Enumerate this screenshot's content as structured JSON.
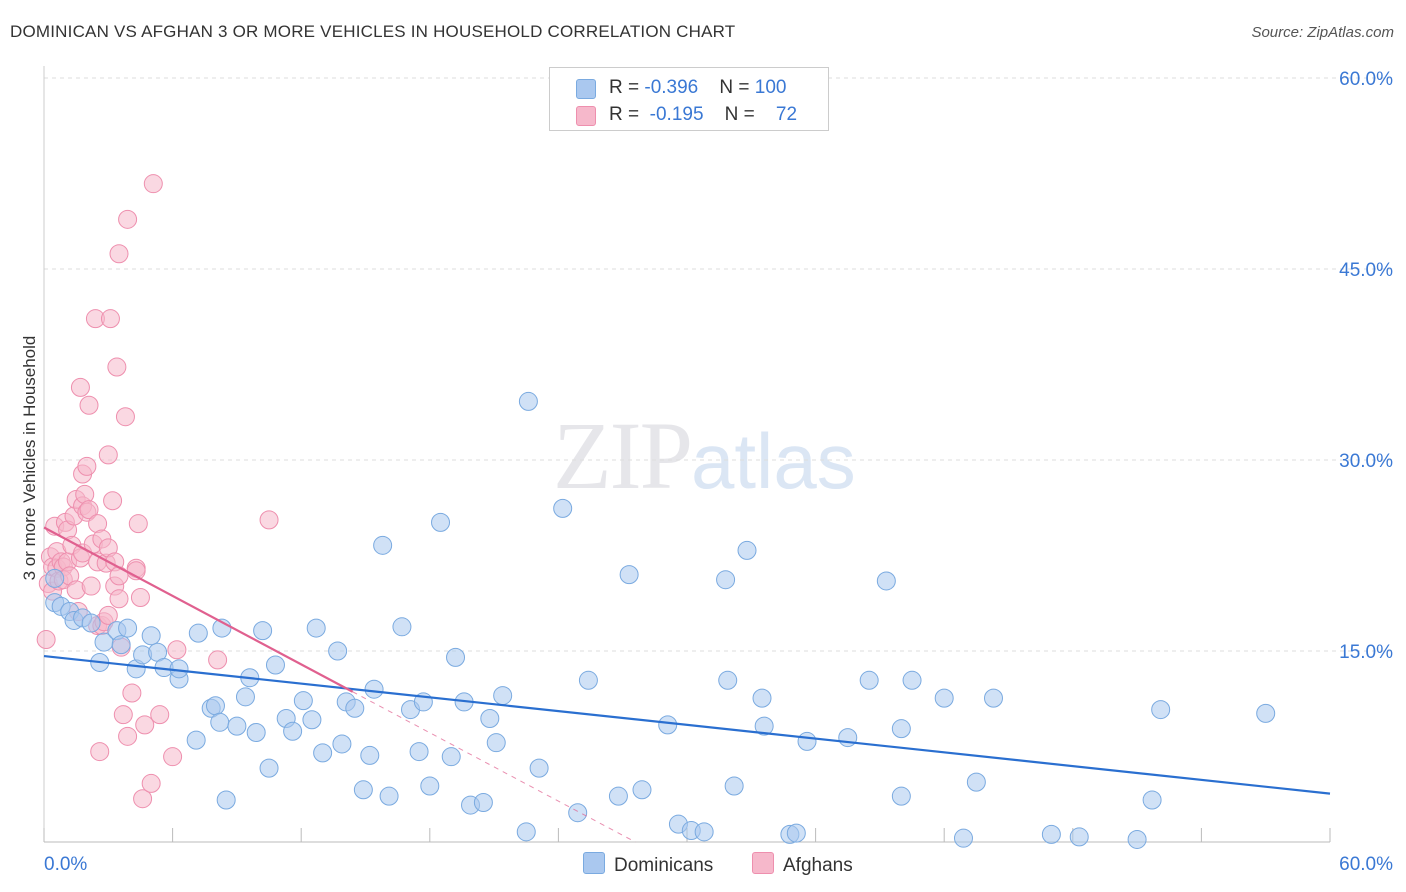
{
  "header": {
    "title": "DOMINICAN VS AFGHAN 3 OR MORE VEHICLES IN HOUSEHOLD CORRELATION CHART",
    "source": "Source: ZipAtlas.com"
  },
  "watermark": {
    "zip": "ZIP",
    "atlas": "atlas"
  },
  "legend_box": {
    "rows": [
      {
        "r_label": "R = ",
        "r_value": "-0.396",
        "n_label": "N = ",
        "n_value": "100",
        "color": "#aac8ef"
      },
      {
        "r_label": "R = ",
        "r_value": "-0.195",
        "n_label": "N = ",
        "n_value": "72",
        "color": "#f6b8cb"
      }
    ]
  },
  "bottom_legend": {
    "items": [
      {
        "label": "Dominicans",
        "color": "#aac8ef"
      },
      {
        "label": "Afghans",
        "color": "#f6b8cb"
      }
    ]
  },
  "colors": {
    "blue_fill": "#aac8ef",
    "blue_stroke": "#7aaae0",
    "blue_line": "#2a6fd0",
    "pink_fill": "#f6b8cb",
    "pink_stroke": "#ee8fae",
    "pink_line": "#e0608f",
    "grid": "#dddddd",
    "axis_text": "#3a78d4"
  },
  "chart_data": {
    "type": "scatter",
    "title": "DOMINICAN VS AFGHAN 3 OR MORE VEHICLES IN HOUSEHOLD CORRELATION CHART",
    "xlabel": "",
    "ylabel": "3 or more Vehicles in Household",
    "xlim": [
      0,
      60
    ],
    "ylim": [
      0,
      60
    ],
    "x_tick_labels": [
      "0.0%",
      "60.0%"
    ],
    "y_ticks": [
      15,
      30,
      45,
      60
    ],
    "y_tick_labels": [
      "15.0%",
      "30.0%",
      "45.0%",
      "60.0%"
    ],
    "grid": true,
    "legend_position": "top-center",
    "series": [
      {
        "name": "Dominicans",
        "r": -0.396,
        "n": 100,
        "trend": {
          "x0": 0,
          "y0": 14.6,
          "x1": 60,
          "y1": 3.8
        },
        "points": [
          [
            0.5,
            20.7
          ],
          [
            0.5,
            18.8
          ],
          [
            0.8,
            18.5
          ],
          [
            1.2,
            18.1
          ],
          [
            1.4,
            17.4
          ],
          [
            1.8,
            17.6
          ],
          [
            2.2,
            17.2
          ],
          [
            2.6,
            14.1
          ],
          [
            2.8,
            15.7
          ],
          [
            3.4,
            16.6
          ],
          [
            3.6,
            15.5
          ],
          [
            3.9,
            16.8
          ],
          [
            4.3,
            13.6
          ],
          [
            4.6,
            14.7
          ],
          [
            5.0,
            16.2
          ],
          [
            5.3,
            14.9
          ],
          [
            5.6,
            13.7
          ],
          [
            6.3,
            12.8
          ],
          [
            6.3,
            13.6
          ],
          [
            7.1,
            8.0
          ],
          [
            7.2,
            16.4
          ],
          [
            7.8,
            10.5
          ],
          [
            8.0,
            10.7
          ],
          [
            8.2,
            9.4
          ],
          [
            8.3,
            16.8
          ],
          [
            8.5,
            3.3
          ],
          [
            9.0,
            9.1
          ],
          [
            9.4,
            11.4
          ],
          [
            9.6,
            12.9
          ],
          [
            9.9,
            8.6
          ],
          [
            10.2,
            16.6
          ],
          [
            10.5,
            5.8
          ],
          [
            10.8,
            13.9
          ],
          [
            11.3,
            9.7
          ],
          [
            11.6,
            8.7
          ],
          [
            12.1,
            11.1
          ],
          [
            12.5,
            9.6
          ],
          [
            12.7,
            16.8
          ],
          [
            13.0,
            7.0
          ],
          [
            13.7,
            15.0
          ],
          [
            13.9,
            7.7
          ],
          [
            14.1,
            11.0
          ],
          [
            14.5,
            10.5
          ],
          [
            14.9,
            4.1
          ],
          [
            15.2,
            6.8
          ],
          [
            15.4,
            12.0
          ],
          [
            15.8,
            23.3
          ],
          [
            16.1,
            3.6
          ],
          [
            16.7,
            16.9
          ],
          [
            17.1,
            10.4
          ],
          [
            17.5,
            7.1
          ],
          [
            17.7,
            11.0
          ],
          [
            18.0,
            4.4
          ],
          [
            18.5,
            25.1
          ],
          [
            19.0,
            6.7
          ],
          [
            19.2,
            14.5
          ],
          [
            19.6,
            11.0
          ],
          [
            19.9,
            2.9
          ],
          [
            20.5,
            3.1
          ],
          [
            20.8,
            9.7
          ],
          [
            21.1,
            7.8
          ],
          [
            21.4,
            11.5
          ],
          [
            22.5,
            0.8
          ],
          [
            22.6,
            34.6
          ],
          [
            23.1,
            5.8
          ],
          [
            24.2,
            26.2
          ],
          [
            24.9,
            2.3
          ],
          [
            25.4,
            12.7
          ],
          [
            26.8,
            3.6
          ],
          [
            27.3,
            21.0
          ],
          [
            27.9,
            4.1
          ],
          [
            29.1,
            9.2
          ],
          [
            29.6,
            1.4
          ],
          [
            30.2,
            0.9
          ],
          [
            30.8,
            0.8
          ],
          [
            31.8,
            20.6
          ],
          [
            31.9,
            12.7
          ],
          [
            32.2,
            4.4
          ],
          [
            32.8,
            22.9
          ],
          [
            33.5,
            11.3
          ],
          [
            33.6,
            9.1
          ],
          [
            34.8,
            0.6
          ],
          [
            35.1,
            0.7
          ],
          [
            35.6,
            7.9
          ],
          [
            37.5,
            8.2
          ],
          [
            38.5,
            12.7
          ],
          [
            39.3,
            20.5
          ],
          [
            40.0,
            8.9
          ],
          [
            40.0,
            3.6
          ],
          [
            40.5,
            12.7
          ],
          [
            42.0,
            11.3
          ],
          [
            42.9,
            0.3
          ],
          [
            43.5,
            4.7
          ],
          [
            44.3,
            11.3
          ],
          [
            47.0,
            0.6
          ],
          [
            48.3,
            0.4
          ],
          [
            51.0,
            0.2
          ],
          [
            51.7,
            3.3
          ],
          [
            52.1,
            10.4
          ],
          [
            57.0,
            10.1
          ]
        ]
      },
      {
        "name": "Afghans",
        "r": -0.195,
        "n": 72,
        "trend": {
          "x0": 0,
          "y0": 24.7,
          "x1": 14.4,
          "y1": 11.8
        },
        "trend_dashed_extension": {
          "x0": 14.4,
          "y0": 11.8,
          "x1": 29.6,
          "y1": -1.8
        },
        "points": [
          [
            0.1,
            15.9
          ],
          [
            0.2,
            20.3
          ],
          [
            0.3,
            22.4
          ],
          [
            0.4,
            19.7
          ],
          [
            0.4,
            21.6
          ],
          [
            0.5,
            24.8
          ],
          [
            0.6,
            22.8
          ],
          [
            0.6,
            21.5
          ],
          [
            0.7,
            20.5
          ],
          [
            0.8,
            22.0
          ],
          [
            0.9,
            21.6
          ],
          [
            0.9,
            20.6
          ],
          [
            1.0,
            25.1
          ],
          [
            1.1,
            24.5
          ],
          [
            1.1,
            22.0
          ],
          [
            1.2,
            20.9
          ],
          [
            1.3,
            23.3
          ],
          [
            1.4,
            25.6
          ],
          [
            1.5,
            19.8
          ],
          [
            1.5,
            26.9
          ],
          [
            1.6,
            18.1
          ],
          [
            1.7,
            22.3
          ],
          [
            1.7,
            35.7
          ],
          [
            1.8,
            26.4
          ],
          [
            1.8,
            22.7
          ],
          [
            1.8,
            28.9
          ],
          [
            1.9,
            27.3
          ],
          [
            2.0,
            29.5
          ],
          [
            2.0,
            25.9
          ],
          [
            2.1,
            34.3
          ],
          [
            2.1,
            26.1
          ],
          [
            2.2,
            20.1
          ],
          [
            2.3,
            23.4
          ],
          [
            2.4,
            41.1
          ],
          [
            2.5,
            25.0
          ],
          [
            2.5,
            17.0
          ],
          [
            2.5,
            22.0
          ],
          [
            2.6,
            7.1
          ],
          [
            2.7,
            23.8
          ],
          [
            2.7,
            17.0
          ],
          [
            2.8,
            17.3
          ],
          [
            2.9,
            21.9
          ],
          [
            3.0,
            30.4
          ],
          [
            3.0,
            17.8
          ],
          [
            3.0,
            23.1
          ],
          [
            3.1,
            41.1
          ],
          [
            3.2,
            26.8
          ],
          [
            3.3,
            20.1
          ],
          [
            3.3,
            22.0
          ],
          [
            3.4,
            37.3
          ],
          [
            3.5,
            19.1
          ],
          [
            3.5,
            46.2
          ],
          [
            3.5,
            20.9
          ],
          [
            3.6,
            15.3
          ],
          [
            3.7,
            10.0
          ],
          [
            3.8,
            33.4
          ],
          [
            3.9,
            48.9
          ],
          [
            3.9,
            8.3
          ],
          [
            4.1,
            11.7
          ],
          [
            4.3,
            21.5
          ],
          [
            4.3,
            21.3
          ],
          [
            4.4,
            25.0
          ],
          [
            4.5,
            19.2
          ],
          [
            4.6,
            3.4
          ],
          [
            4.7,
            9.2
          ],
          [
            5.0,
            4.6
          ],
          [
            5.1,
            51.7
          ],
          [
            5.4,
            10.0
          ],
          [
            6.0,
            6.7
          ],
          [
            6.2,
            15.1
          ],
          [
            8.1,
            14.3
          ],
          [
            10.5,
            25.3
          ]
        ]
      }
    ]
  }
}
